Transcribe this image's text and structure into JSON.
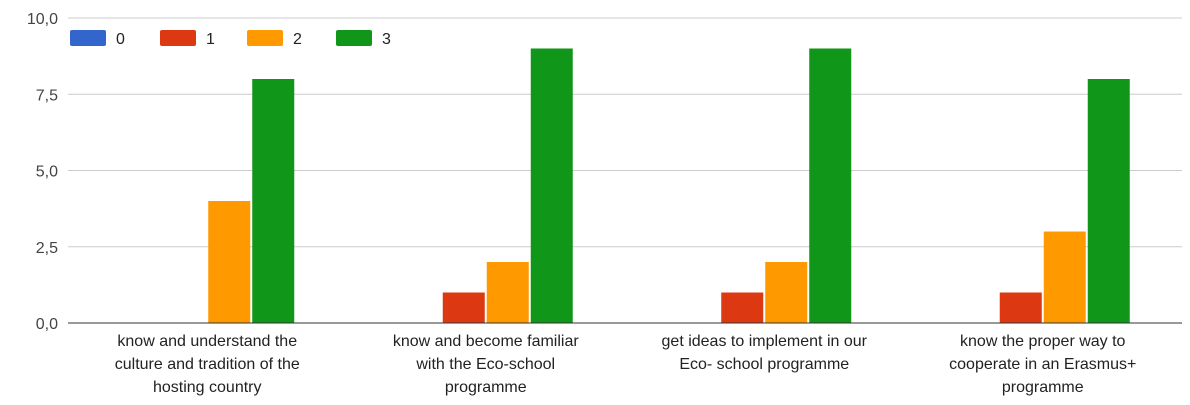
{
  "chart_data": {
    "type": "bar",
    "categories": [
      [
        "know and understand the",
        "culture and tradition of the",
        "hosting country"
      ],
      [
        "know and become familiar",
        "with the Eco-school",
        "programme"
      ],
      [
        "get ideas to implement in our",
        "Eco- school programme"
      ],
      [
        "know the proper way to",
        "cooperate in an Erasmus+",
        "programme"
      ]
    ],
    "series": [
      {
        "name": "0",
        "color": "#3366cc",
        "values": [
          0,
          0,
          0,
          0
        ]
      },
      {
        "name": "1",
        "color": "#dc3912",
        "values": [
          0,
          1,
          1,
          1
        ]
      },
      {
        "name": "2",
        "color": "#ff9900",
        "values": [
          4,
          2,
          2,
          3
        ]
      },
      {
        "name": "3",
        "color": "#109618",
        "values": [
          8,
          9,
          9,
          8
        ]
      }
    ],
    "ylim": [
      0,
      10
    ],
    "yticks": [
      {
        "value": 0,
        "label": "0,0"
      },
      {
        "value": 2.5,
        "label": "2,5"
      },
      {
        "value": 5,
        "label": "5,0"
      },
      {
        "value": 7.5,
        "label": "7,5"
      },
      {
        "value": 10,
        "label": "10,0"
      }
    ],
    "grid": true,
    "legend_position": "top-left"
  }
}
